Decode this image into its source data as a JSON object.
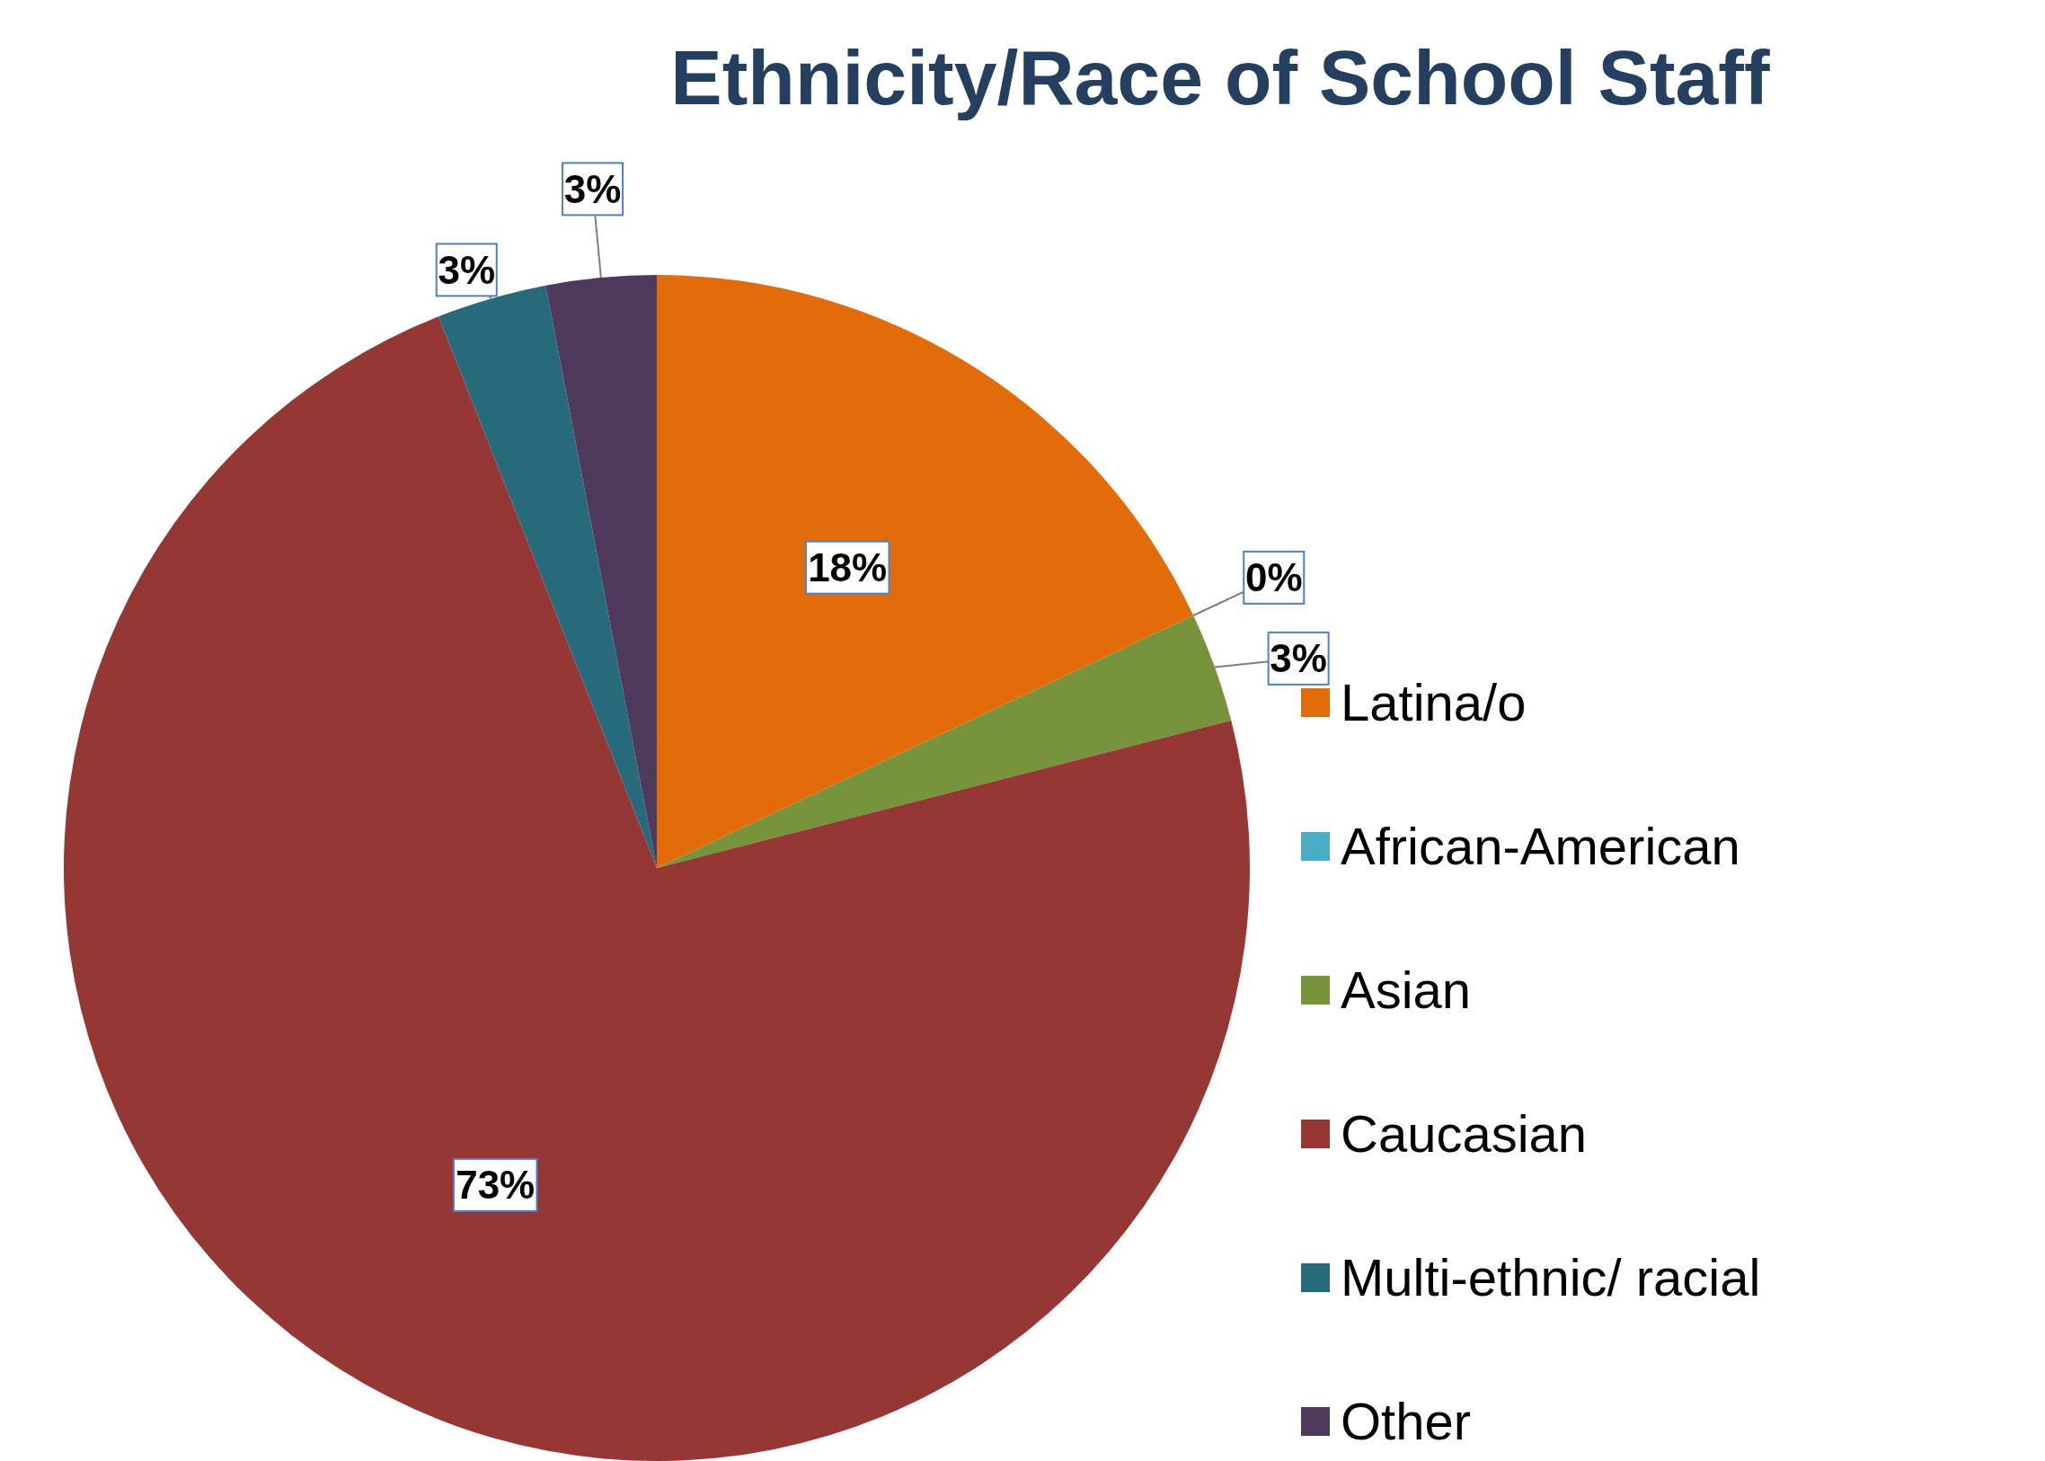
{
  "chart_data": {
    "type": "pie",
    "title": "Ethnicity/Race of School Staff",
    "categories": [
      "Latina/o",
      "African-American",
      "Asian",
      "Caucasian",
      "Multi-ethnic/ racial",
      "Other"
    ],
    "values": [
      18,
      0,
      3,
      73,
      3,
      3
    ],
    "value_labels": [
      "18%",
      "0%",
      "3%",
      "73%",
      "3%",
      "3%"
    ],
    "colors": [
      "#e36c0a",
      "#4bacc6",
      "#77933c",
      "#953735",
      "#276a7c",
      "#4f3a5e"
    ],
    "legend": "right"
  }
}
